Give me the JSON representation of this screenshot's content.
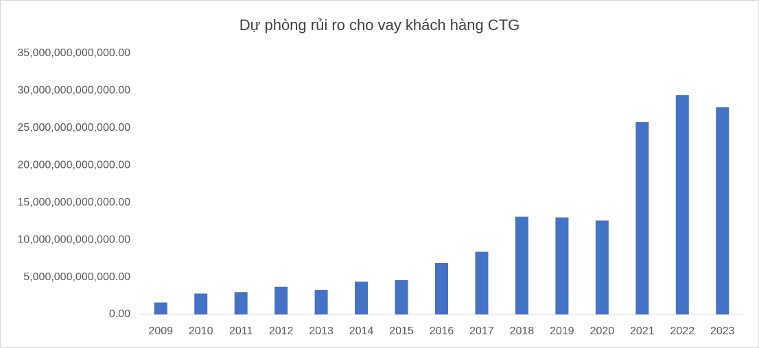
{
  "chart_data": {
    "type": "bar",
    "title": "Dự phòng rủi ro cho vay khách hàng CTG",
    "categories": [
      "2009",
      "2010",
      "2011",
      "2012",
      "2013",
      "2014",
      "2015",
      "2016",
      "2017",
      "2018",
      "2019",
      "2020",
      "2021",
      "2022",
      "2023"
    ],
    "values": [
      1600000000000,
      2800000000000,
      3000000000000,
      3700000000000,
      3300000000000,
      4400000000000,
      4600000000000,
      6900000000000,
      8400000000000,
      13100000000000,
      13000000000000,
      12600000000000,
      25800000000000,
      29400000000000,
      27800000000000
    ],
    "color": "#4472c4",
    "ylim": [
      0,
      35000000000000
    ],
    "yticks": [
      {
        "value": 0,
        "label": "0.00"
      },
      {
        "value": 5000000000000,
        "label": "5,000,000,000,000.00"
      },
      {
        "value": 10000000000000,
        "label": "10,000,000,000,000.00"
      },
      {
        "value": 15000000000000,
        "label": "15,000,000,000,000.00"
      },
      {
        "value": 20000000000000,
        "label": "20,000,000,000,000.00"
      },
      {
        "value": 25000000000000,
        "label": "25,000,000,000,000.00"
      },
      {
        "value": 30000000000000,
        "label": "30,000,000,000,000.00"
      },
      {
        "value": 35000000000000,
        "label": "35,000,000,000,000.00"
      }
    ],
    "grid": false
  }
}
